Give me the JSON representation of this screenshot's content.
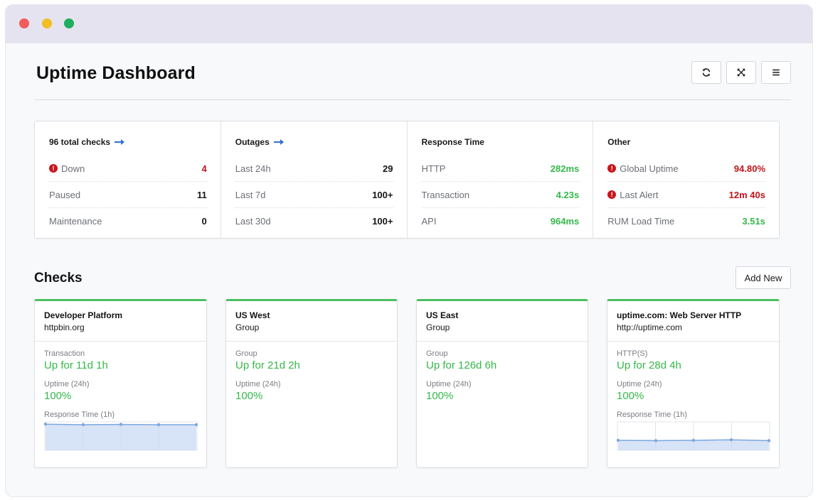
{
  "page": {
    "title": "Uptime Dashboard"
  },
  "toolbar": {
    "refresh_icon": "refresh-icon",
    "expand_icon": "expand-icon",
    "menu_icon": "menu-icon"
  },
  "stats": {
    "checks": {
      "heading": "96 total checks",
      "rows": [
        {
          "label": "Down",
          "value": "4",
          "alert": true
        },
        {
          "label": "Paused",
          "value": "11"
        },
        {
          "label": "Maintenance",
          "value": "0"
        }
      ]
    },
    "outages": {
      "heading": "Outages",
      "rows": [
        {
          "label": "Last 24h",
          "value": "29"
        },
        {
          "label": "Last 7d",
          "value": "100+"
        },
        {
          "label": "Last 30d",
          "value": "100+"
        }
      ]
    },
    "response": {
      "heading": "Response Time",
      "rows": [
        {
          "label": "HTTP",
          "value": "282ms"
        },
        {
          "label": "Transaction",
          "value": "4.23s"
        },
        {
          "label": "API",
          "value": "964ms"
        }
      ]
    },
    "other": {
      "heading": "Other",
      "rows": [
        {
          "label": "Global Uptime",
          "value": "94.80%",
          "alert": true
        },
        {
          "label": "Last Alert",
          "value": "12m 40s",
          "alert": true
        },
        {
          "label": "RUM Load Time",
          "value": "3.51s"
        }
      ]
    }
  },
  "checks_section": {
    "title": "Checks",
    "add_label": "Add New"
  },
  "cards": [
    {
      "name": "Developer Platform",
      "sub": "httpbin.org",
      "type": "Transaction",
      "status": "Up for 11d 1h",
      "uptime_label": "Uptime (24h)",
      "uptime": "100%",
      "rt_label": "Response Time (1h)",
      "spark": [
        0.92,
        0.9,
        0.91,
        0.9,
        0.9
      ]
    },
    {
      "name": "US West",
      "sub": "Group",
      "type": "Group",
      "status": "Up for 21d 2h",
      "uptime_label": "Uptime (24h)",
      "uptime": "100%"
    },
    {
      "name": "US East",
      "sub": "Group",
      "type": "Group",
      "status": "Up for 126d 6h",
      "uptime_label": "Uptime (24h)",
      "uptime": "100%"
    },
    {
      "name": "uptime.com: Web Server HTTP",
      "sub": "http://uptime.com",
      "type": "HTTP(S)",
      "status": "Up for 28d 4h",
      "uptime_label": "Uptime (24h)",
      "uptime": "100%",
      "rt_label": "Response Time (1h)",
      "spark": [
        0.35,
        0.34,
        0.35,
        0.37,
        0.34
      ]
    }
  ],
  "colors": {
    "green": "#35b84a",
    "red": "#c0141a",
    "accent_blue": "#2f6fd6",
    "card_top": "#49c060"
  }
}
